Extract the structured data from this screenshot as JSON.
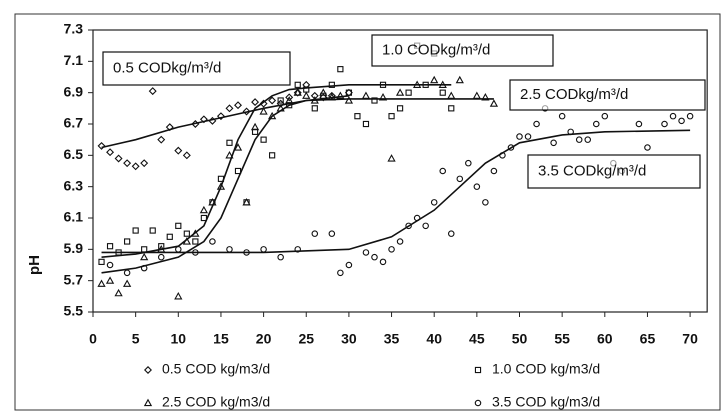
{
  "chart_data": {
    "type": "scatter",
    "y_label": "pH",
    "xlim": [
      0,
      72
    ],
    "ylim": [
      5.5,
      7.3
    ],
    "xticks": [
      0,
      5,
      10,
      15,
      20,
      25,
      30,
      35,
      40,
      45,
      50,
      55,
      60,
      65,
      70
    ],
    "yticks": [
      5.5,
      5.7,
      5.9,
      6.1,
      6.3,
      6.5,
      6.7,
      6.9,
      7.1,
      7.3
    ],
    "series": [
      {
        "name": "0.5 COD kg/m3/d",
        "marker": "diamond",
        "color": "#111",
        "x": [
          1,
          2,
          3,
          4,
          5,
          6,
          7,
          8,
          9,
          10,
          11,
          12,
          13,
          14,
          15,
          16,
          17,
          18,
          19,
          20,
          21,
          22,
          23,
          24,
          25,
          26,
          27,
          28,
          30
        ],
        "y": [
          6.56,
          6.52,
          6.48,
          6.45,
          6.43,
          6.45,
          6.91,
          6.6,
          6.68,
          6.53,
          6.5,
          6.7,
          6.73,
          6.72,
          6.75,
          6.8,
          6.82,
          6.78,
          6.84,
          6.83,
          6.85,
          6.83,
          6.87,
          6.9,
          6.95,
          6.88,
          6.87,
          6.88,
          6.9
        ]
      },
      {
        "name": "1.0 COD kg/m3/d",
        "marker": "square",
        "color": "#111",
        "x": [
          1,
          2,
          3,
          4,
          5,
          6,
          7,
          8,
          9,
          10,
          11,
          12,
          13,
          14,
          15,
          16,
          17,
          18,
          19,
          20,
          21,
          22,
          23,
          24,
          25,
          26,
          27,
          28,
          29,
          30,
          31,
          32,
          33,
          34,
          35,
          36,
          37,
          38,
          39,
          40,
          41,
          42
        ],
        "y": [
          5.82,
          5.92,
          5.88,
          5.95,
          6.02,
          5.9,
          6.02,
          5.92,
          5.98,
          6.05,
          6.0,
          5.95,
          6.1,
          6.2,
          6.35,
          6.58,
          6.4,
          6.2,
          6.65,
          6.6,
          6.5,
          6.85,
          6.82,
          6.95,
          6.92,
          6.8,
          6.88,
          6.95,
          7.05,
          6.9,
          6.75,
          6.7,
          6.85,
          6.95,
          6.75,
          6.8,
          6.9,
          7.2,
          6.95,
          7.15,
          6.9,
          6.8
        ]
      },
      {
        "name": "2.5 COD kg/m3/d",
        "marker": "triangle",
        "color": "#111",
        "x": [
          1,
          2,
          3,
          4,
          6,
          8,
          10,
          11,
          12,
          13,
          14,
          15,
          16,
          17,
          18,
          19,
          20,
          21,
          22,
          23,
          24,
          25,
          26,
          27,
          28,
          29,
          30,
          32,
          34,
          35,
          36,
          38,
          40,
          41,
          42,
          43,
          45,
          46,
          47
        ],
        "y": [
          5.68,
          5.7,
          5.62,
          5.68,
          5.85,
          5.9,
          5.6,
          5.95,
          6.0,
          6.15,
          6.2,
          6.3,
          6.5,
          6.55,
          6.2,
          6.68,
          6.78,
          6.75,
          6.8,
          6.85,
          6.9,
          6.88,
          6.85,
          6.9,
          6.87,
          6.88,
          6.85,
          6.88,
          6.87,
          6.48,
          6.9,
          6.95,
          6.98,
          6.95,
          6.88,
          6.98,
          6.88,
          6.87,
          6.83
        ]
      },
      {
        "name": "3.5 COD kg/m3/d",
        "marker": "circle",
        "color": "#111",
        "x": [
          2,
          4,
          6,
          8,
          10,
          12,
          14,
          16,
          18,
          20,
          22,
          24,
          26,
          28,
          29,
          30,
          32,
          33,
          34,
          35,
          36,
          37,
          38,
          39,
          40,
          41,
          42,
          43,
          44,
          45,
          46,
          47,
          48,
          49,
          50,
          51,
          52,
          53,
          54,
          55,
          56,
          57,
          58,
          59,
          60,
          61,
          62,
          64,
          65,
          67,
          68,
          69,
          70
        ],
        "y": [
          5.8,
          5.75,
          5.78,
          5.85,
          5.9,
          5.88,
          5.95,
          5.9,
          5.88,
          5.9,
          5.85,
          5.9,
          6.0,
          6.0,
          5.75,
          5.8,
          5.88,
          5.85,
          5.82,
          5.9,
          5.95,
          6.05,
          6.1,
          6.05,
          6.2,
          6.4,
          6.0,
          6.35,
          6.45,
          6.3,
          6.2,
          6.4,
          6.5,
          6.55,
          6.62,
          6.62,
          6.7,
          6.8,
          6.58,
          6.75,
          6.65,
          6.6,
          6.6,
          6.7,
          6.75,
          6.45,
          6.4,
          6.7,
          6.55,
          6.7,
          6.75,
          6.72,
          6.75
        ]
      }
    ],
    "trend_lines": [
      {
        "x": [
          1,
          5,
          10,
          15,
          20,
          25,
          30
        ],
        "y": [
          6.55,
          6.6,
          6.68,
          6.74,
          6.8,
          6.85,
          6.88
        ]
      },
      {
        "x": [
          1,
          5,
          10,
          13,
          15,
          17,
          19,
          21,
          23,
          25,
          30,
          35,
          40,
          42
        ],
        "y": [
          5.85,
          5.87,
          5.92,
          6.05,
          6.3,
          6.6,
          6.8,
          6.88,
          6.92,
          6.93,
          6.95,
          6.95,
          6.95,
          6.95
        ]
      },
      {
        "x": [
          1,
          5,
          10,
          13,
          15,
          17,
          19,
          21,
          23,
          25,
          30,
          40,
          47
        ],
        "y": [
          5.75,
          5.78,
          5.85,
          5.95,
          6.1,
          6.35,
          6.6,
          6.75,
          6.82,
          6.85,
          6.86,
          6.86,
          6.86
        ]
      },
      {
        "x": [
          1,
          10,
          20,
          30,
          35,
          40,
          43,
          46,
          50,
          55,
          60,
          70
        ],
        "y": [
          5.88,
          5.88,
          5.88,
          5.9,
          5.98,
          6.15,
          6.3,
          6.45,
          6.58,
          6.63,
          6.65,
          6.66
        ]
      }
    ],
    "annotations": [
      "0.5 CODkg/m³/d",
      "1.0 CODkg/m³/d",
      "2.5 CODkg/m³/d",
      "3.5 CODkg/m³/d"
    ]
  }
}
